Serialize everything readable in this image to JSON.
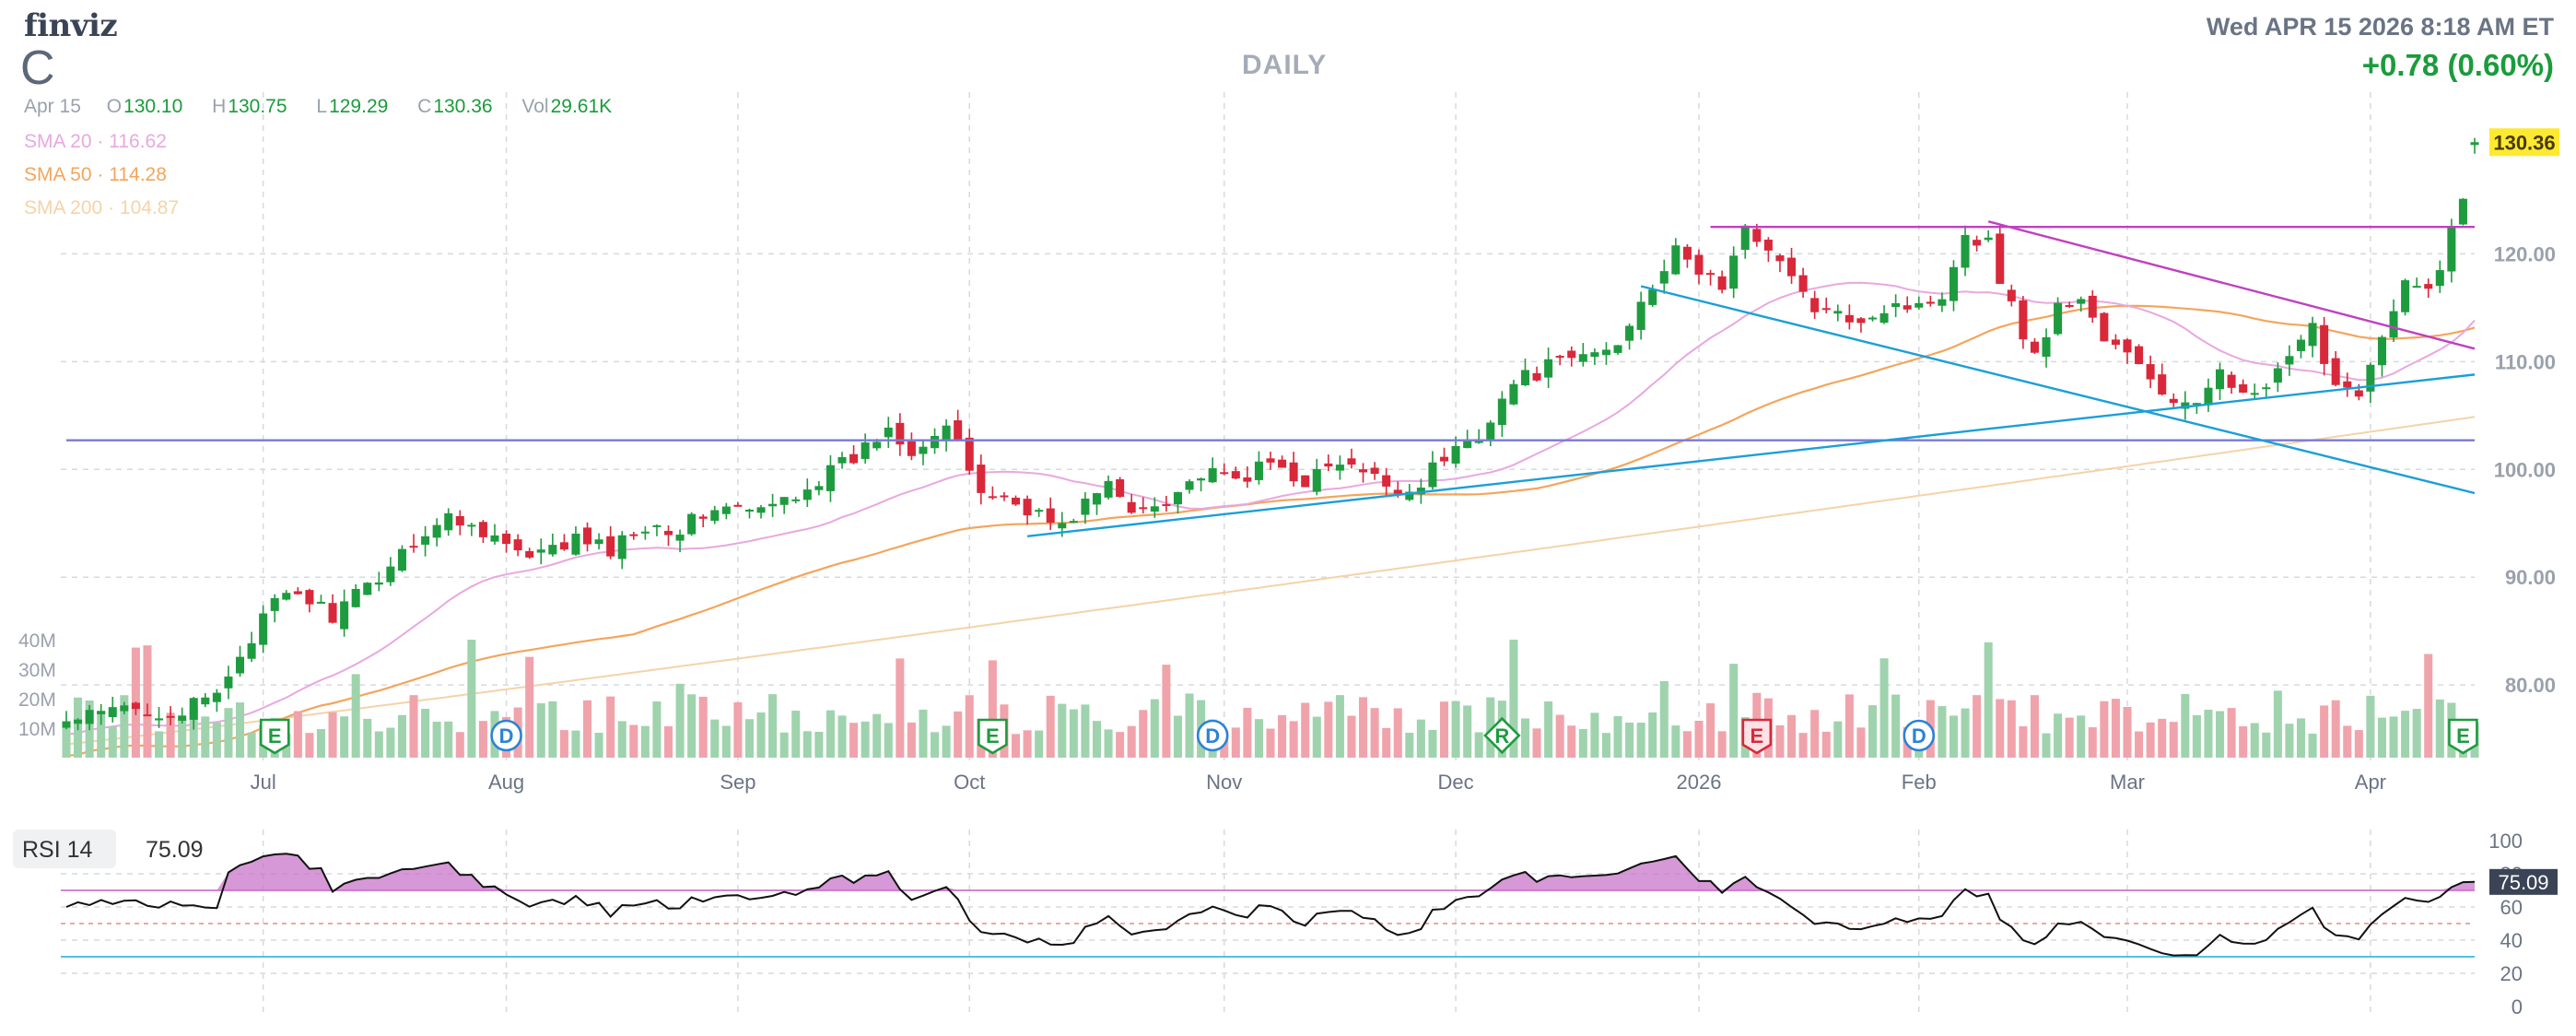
{
  "header": {
    "logo": "finviz",
    "ticker": "C",
    "period": "DAILY",
    "datetime": "Wed APR 15 2026 8:18 AM ET",
    "change": "+0.78 (0.60%)"
  },
  "ohlc": {
    "date": "Apr 15",
    "open_label": "O",
    "open": "130.10",
    "high_label": "H",
    "high": "130.75",
    "low_label": "L",
    "low": "129.29",
    "close_label": "C",
    "close": "130.36",
    "vol_label": "Vol",
    "vol": "29.61K"
  },
  "sma": [
    {
      "label": "SMA 20",
      "value": "116.62",
      "color": "#e8a8e0"
    },
    {
      "label": "SMA 50",
      "value": "114.28",
      "color": "#f4a55c"
    },
    {
      "label": "SMA 200",
      "value": "104.87",
      "color": "#f5d3a8"
    }
  ],
  "chart_data": [
    {
      "type": "candlestick",
      "title": "C DAILY",
      "ylim": [
        73,
        135
      ],
      "y_ticks": [
        80,
        90,
        100,
        110,
        120
      ],
      "y_tick_labels": [
        "80.00",
        "90.00",
        "100.00",
        "110.00",
        "120.00"
      ],
      "x_tick_labels": [
        "Jul",
        "Aug",
        "Sep",
        "Oct",
        "Nov",
        "Dec",
        "2026",
        "Feb",
        "Mar",
        "Apr"
      ],
      "x_tick_index": [
        17,
        38,
        58,
        78,
        100,
        120,
        141,
        160,
        178,
        199
      ],
      "n_bars": 209,
      "last_price_label": "130.36",
      "colors": {
        "up": "#1e9b3f",
        "down": "#d9283a",
        "last_price_bg": "#fde931"
      },
      "close_anchors": [
        [
          0,
          76.5
        ],
        [
          5,
          77.8
        ],
        [
          10,
          77.5
        ],
        [
          13,
          79
        ],
        [
          15,
          83
        ],
        [
          18,
          87.5
        ],
        [
          20,
          88.5
        ],
        [
          23,
          86.5
        ],
        [
          26,
          89
        ],
        [
          30,
          93.5
        ],
        [
          33,
          95.5
        ],
        [
          36,
          94.5
        ],
        [
          40,
          91.5
        ],
        [
          44,
          93.5
        ],
        [
          47,
          92.5
        ],
        [
          50,
          95
        ],
        [
          53,
          94.5
        ],
        [
          56,
          96.5
        ],
        [
          60,
          96
        ],
        [
          64,
          98.5
        ],
        [
          68,
          101
        ],
        [
          71,
          104
        ],
        [
          73,
          102
        ],
        [
          76,
          104
        ],
        [
          79,
          98
        ],
        [
          83,
          96.5
        ],
        [
          86,
          94.5
        ],
        [
          88,
          97
        ],
        [
          90,
          98.5
        ],
        [
          92,
          96
        ],
        [
          95,
          97.5
        ],
        [
          98,
          99.5
        ],
        [
          101,
          99
        ],
        [
          104,
          100.5
        ],
        [
          107,
          99
        ],
        [
          110,
          100.5
        ],
        [
          113,
          99
        ],
        [
          116,
          98
        ],
        [
          119,
          101
        ],
        [
          122,
          103.5
        ],
        [
          125,
          108
        ],
        [
          128,
          109.5
        ],
        [
          131,
          110.5
        ],
        [
          134,
          111.5
        ],
        [
          136,
          116
        ],
        [
          139,
          120
        ],
        [
          141,
          118.5
        ],
        [
          143,
          117
        ],
        [
          145,
          122
        ],
        [
          147,
          121
        ],
        [
          149,
          117.5
        ],
        [
          151,
          115
        ],
        [
          153,
          114
        ],
        [
          156,
          114.5
        ],
        [
          158,
          115.5
        ],
        [
          160,
          115
        ],
        [
          162,
          116.5
        ],
        [
          164,
          122
        ],
        [
          166,
          121
        ],
        [
          168,
          115
        ],
        [
          170,
          110.5
        ],
        [
          172,
          115
        ],
        [
          174,
          116
        ],
        [
          176,
          112
        ],
        [
          178,
          110.5
        ],
        [
          180,
          108.5
        ],
        [
          182,
          106
        ],
        [
          184,
          105.5
        ],
        [
          186,
          110
        ],
        [
          188,
          106.5
        ],
        [
          190,
          107.5
        ],
        [
          192,
          110
        ],
        [
          194,
          113
        ],
        [
          196,
          108
        ],
        [
          198,
          107.5
        ],
        [
          200,
          112
        ],
        [
          202,
          117
        ],
        [
          204,
          116.5
        ],
        [
          206,
          122
        ],
        [
          207,
          125
        ],
        [
          208,
          130.36
        ]
      ],
      "volume_axis": {
        "labels": [
          "10M",
          "20M",
          "30M",
          "40M"
        ],
        "values": [
          10,
          20,
          30,
          40
        ],
        "max": 40
      },
      "earnings_markers": [
        {
          "letter": "E",
          "index": 18,
          "style": "green"
        },
        {
          "letter": "D",
          "index": 38,
          "style": "blue"
        },
        {
          "letter": "E",
          "index": 80,
          "style": "green"
        },
        {
          "letter": "D",
          "index": 99,
          "style": "blue"
        },
        {
          "letter": "R",
          "index": 124,
          "style": "green"
        },
        {
          "letter": "E",
          "index": 146,
          "style": "red"
        },
        {
          "letter": "D",
          "index": 160,
          "style": "blue"
        },
        {
          "letter": "E",
          "index": 207,
          "style": "green"
        }
      ],
      "trendlines": [
        {
          "color": "#7a7ad6",
          "from": [
            0,
            102.7
          ],
          "to": [
            209,
            102.7
          ]
        },
        {
          "color": "#c040c0",
          "from": [
            142,
            122.5
          ],
          "to": [
            209,
            122.5
          ]
        },
        {
          "color": "#c040c0",
          "from": [
            166,
            123
          ],
          "to": [
            209,
            111.2
          ]
        },
        {
          "color": "#1b9fd8",
          "from": [
            83,
            93.8
          ],
          "to": [
            209,
            108.8
          ]
        },
        {
          "color": "#1b9fd8",
          "from": [
            136,
            117
          ],
          "to": [
            209,
            97.8
          ]
        }
      ]
    },
    {
      "type": "line",
      "title": "RSI 14",
      "value_label": "75.09",
      "ylim": [
        0,
        100
      ],
      "y_ticks": [
        0,
        20,
        40,
        60,
        80,
        100
      ],
      "y_tick_labels": [
        "0",
        "20",
        "40",
        "60",
        "80",
        "100"
      ],
      "overbought": 70,
      "oversold": 30,
      "midline": 50,
      "colors": {
        "line": "#111111",
        "overbought": "#d070d0",
        "oversold": "#3ab8e0",
        "fill": "#c876c8"
      }
    }
  ]
}
